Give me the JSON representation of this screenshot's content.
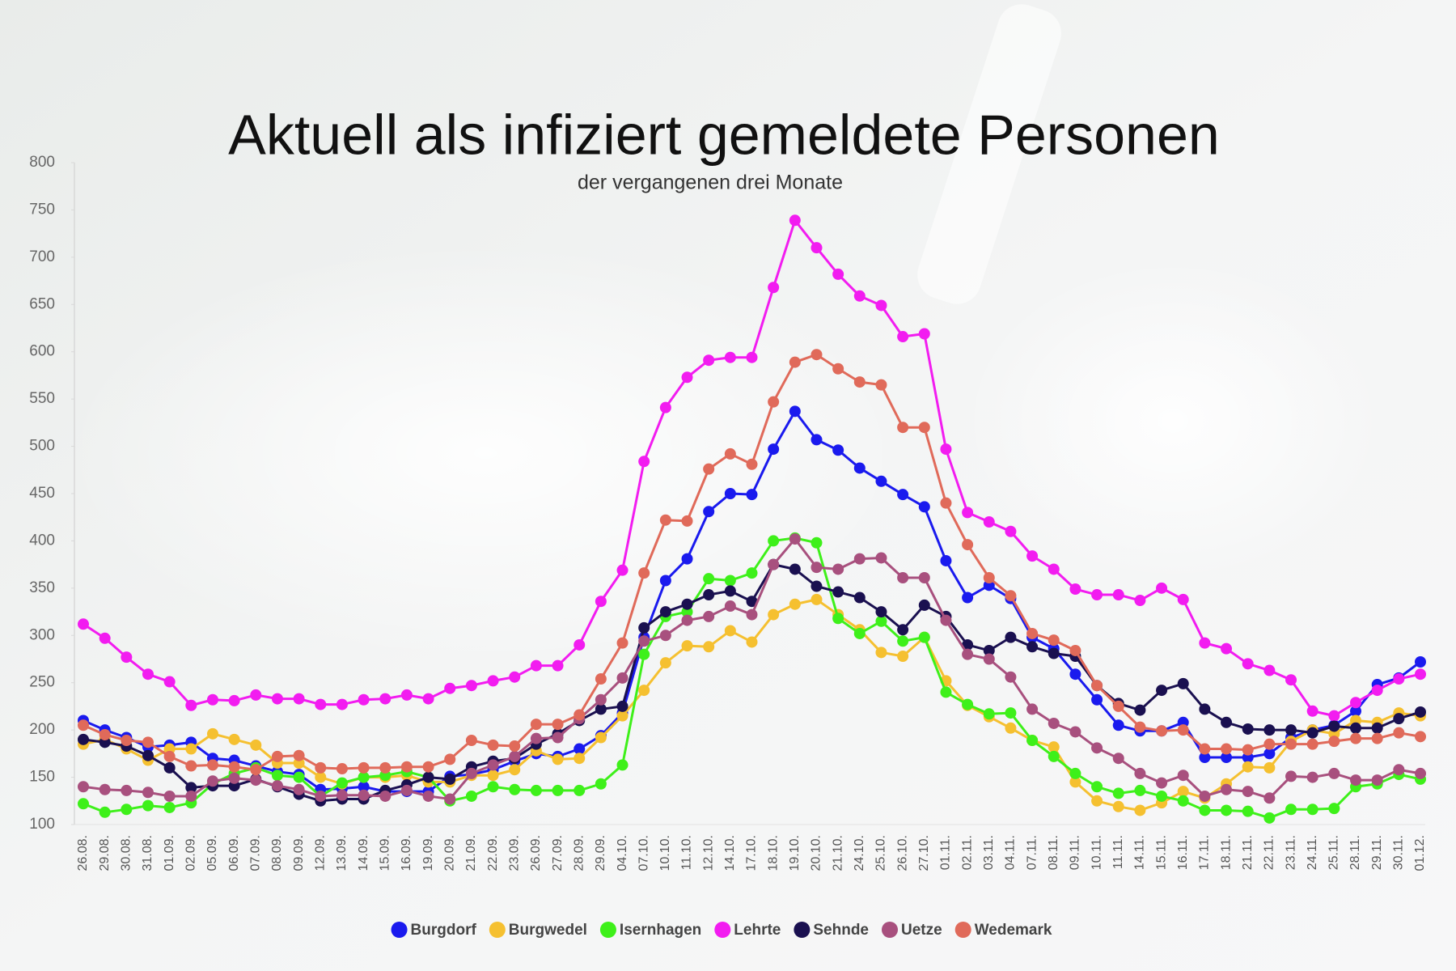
{
  "chart_data": {
    "type": "line",
    "title": "Aktuell als infiziert gemeldete Personen",
    "subtitle": "der vergangenen drei Monate",
    "categories": [
      "26.08.",
      "29.08.",
      "30.08.",
      "31.08.",
      "01.09.",
      "02.09.",
      "05.09.",
      "06.09.",
      "07.09.",
      "08.09.",
      "09.09.",
      "12.09.",
      "13.09.",
      "14.09.",
      "15.09.",
      "16.09.",
      "19.09.",
      "20.09.",
      "21.09.",
      "22.09.",
      "23.09.",
      "26.09.",
      "27.09.",
      "28.09.",
      "29.09.",
      "04.10.",
      "07.10.",
      "10.10.",
      "11.10.",
      "12.10.",
      "14.10.",
      "17.10.",
      "18.10.",
      "19.10.",
      "20.10.",
      "21.10.",
      "24.10.",
      "25.10.",
      "26.10.",
      "27.10.",
      "01.11.",
      "02.11.",
      "03.11.",
      "04.11.",
      "07.11.",
      "08.11.",
      "09.11.",
      "10.11.",
      "11.11.",
      "14.11.",
      "15.11.",
      "16.11.",
      "17.11.",
      "18.11.",
      "21.11.",
      "22.11.",
      "23.11.",
      "24.11.",
      "25.11.",
      "28.11.",
      "29.11.",
      "30.11.",
      "01.12."
    ],
    "series": [
      {
        "name": "Burgdorf",
        "color": "#1a1aee",
        "values": [
          210,
          200,
          192,
          182,
          184,
          187,
          170,
          168,
          162,
          156,
          153,
          137,
          138,
          140,
          135,
          135,
          135,
          151,
          153,
          158,
          167,
          175,
          172,
          180,
          194,
          218,
          298,
          358,
          381,
          431,
          450,
          449,
          497,
          537,
          507,
          496,
          477,
          463,
          449,
          436,
          379,
          340,
          353,
          339,
          298,
          286,
          259,
          232,
          205,
          199,
          199,
          208,
          171,
          171,
          171,
          175,
          192,
          200,
          205,
          220,
          248,
          255,
          272
        ]
      },
      {
        "name": "Burgwedel",
        "color": "#f5c030",
        "values": [
          185,
          190,
          180,
          168,
          180,
          180,
          196,
          190,
          184,
          165,
          165,
          150,
          143,
          150,
          150,
          152,
          145,
          145,
          152,
          152,
          158,
          178,
          169,
          170,
          192,
          215,
          242,
          271,
          289,
          288,
          305,
          293,
          322,
          333,
          338,
          322,
          306,
          282,
          278,
          298,
          252,
          226,
          214,
          202,
          189,
          182,
          145,
          125,
          119,
          115,
          123,
          135,
          128,
          143,
          161,
          160,
          188,
          200,
          196,
          210,
          208,
          218,
          215
        ]
      },
      {
        "name": "Isernhagen",
        "color": "#3ef01a",
        "values": [
          122,
          113,
          116,
          120,
          118,
          123,
          143,
          154,
          160,
          152,
          150,
          130,
          144,
          150,
          152,
          156,
          150,
          125,
          130,
          140,
          137,
          136,
          136,
          136,
          143,
          163,
          280,
          320,
          325,
          360,
          358,
          366,
          400,
          403,
          398,
          318,
          302,
          315,
          294,
          298,
          240,
          227,
          217,
          218,
          189,
          172,
          154,
          140,
          133,
          136,
          130,
          125,
          115,
          115,
          114,
          107,
          116,
          116,
          117,
          140,
          143,
          153,
          148
        ]
      },
      {
        "name": "Lehrte",
        "color": "#f21cf0",
        "values": [
          312,
          297,
          277,
          259,
          251,
          226,
          232,
          231,
          237,
          233,
          233,
          227,
          227,
          232,
          233,
          237,
          233,
          244,
          247,
          252,
          256,
          268,
          268,
          290,
          336,
          369,
          484,
          541,
          573,
          591,
          594,
          594,
          668,
          739,
          710,
          682,
          659,
          649,
          616,
          619,
          497,
          430,
          420,
          410,
          384,
          370,
          349,
          343,
          343,
          337,
          350,
          338,
          292,
          286,
          270,
          263,
          253,
          220,
          215,
          229,
          242,
          254,
          259
        ]
      },
      {
        "name": "Sehnde",
        "color": "#1a1050",
        "values": [
          190,
          187,
          183,
          173,
          160,
          139,
          141,
          141,
          148,
          140,
          132,
          125,
          127,
          127,
          136,
          142,
          150,
          148,
          161,
          167,
          170,
          185,
          196,
          210,
          222,
          225,
          308,
          325,
          333,
          343,
          347,
          336,
          375,
          370,
          352,
          346,
          340,
          325,
          306,
          332,
          320,
          290,
          284,
          298,
          288,
          281,
          278,
          247,
          228,
          221,
          242,
          249,
          222,
          208,
          201,
          200,
          200,
          197,
          204,
          202,
          202,
          212,
          219
        ]
      },
      {
        "name": "Uetze",
        "color": "#a8507e",
        "values": [
          140,
          137,
          136,
          134,
          130,
          130,
          146,
          149,
          147,
          141,
          137,
          130,
          131,
          131,
          130,
          136,
          130,
          127,
          154,
          163,
          172,
          191,
          192,
          212,
          232,
          255,
          294,
          300,
          316,
          320,
          331,
          322,
          375,
          402,
          372,
          370,
          381,
          382,
          361,
          361,
          316,
          280,
          275,
          256,
          222,
          207,
          198,
          181,
          170,
          154,
          144,
          152,
          130,
          137,
          135,
          128,
          151,
          150,
          154,
          147,
          147,
          158,
          154
        ]
      },
      {
        "name": "Wedemark",
        "color": "#e06a5a",
        "values": [
          205,
          195,
          189,
          187,
          172,
          162,
          163,
          161,
          158,
          172,
          173,
          160,
          159,
          160,
          160,
          161,
          161,
          169,
          189,
          184,
          183,
          206,
          206,
          216,
          254,
          292,
          366,
          422,
          421,
          476,
          492,
          481,
          547,
          589,
          597,
          582,
          568,
          565,
          520,
          520,
          440,
          396,
          361,
          342,
          302,
          295,
          284,
          247,
          225,
          203,
          199,
          200,
          180,
          180,
          179,
          185,
          185,
          185,
          188,
          191,
          191,
          197,
          193
        ]
      }
    ],
    "ylim": [
      100,
      800
    ],
    "yticks": [
      100,
      150,
      200,
      250,
      300,
      350,
      400,
      450,
      500,
      550,
      600,
      650,
      700,
      750,
      800
    ],
    "grid": false
  }
}
